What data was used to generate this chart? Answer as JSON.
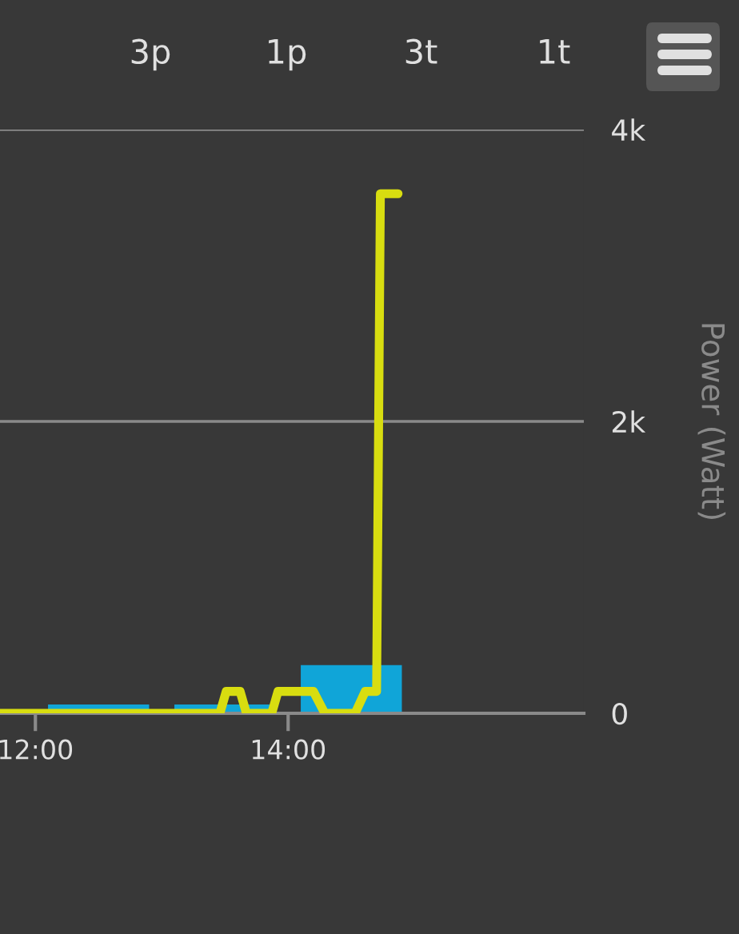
{
  "chart_data": {
    "type": "line",
    "ylabel": "Power (Watt)",
    "annotations": [
      "3p",
      "1p",
      "3t",
      "1t"
    ],
    "xlim": [
      11.72,
      16.34
    ],
    "ylim": [
      0,
      4000
    ],
    "xticks": [
      {
        "value": 12,
        "label": "12:00"
      },
      {
        "value": 14,
        "label": "14:00"
      }
    ],
    "yticks": [
      0,
      {
        "value": 2000,
        "label": "2k"
      },
      {
        "value": 4000,
        "label": "4k"
      }
    ],
    "grid": "y",
    "legend": false,
    "series": [
      {
        "type": "bar",
        "color": "#10a5d8",
        "x": [
          12.5,
          13.5,
          14.5
        ],
        "values": [
          60,
          60,
          330
        ]
      },
      {
        "color": "#d8dd10",
        "x": [
          11.72,
          13.46,
          13.51,
          13.62,
          13.67,
          13.87,
          13.92,
          14.2,
          14.29,
          14.53,
          14.61,
          14.7,
          14.73,
          14.87
        ],
        "values": [
          0,
          0,
          150,
          150,
          0,
          0,
          150,
          150,
          0,
          0,
          150,
          150,
          3560,
          3560
        ]
      }
    ]
  }
}
